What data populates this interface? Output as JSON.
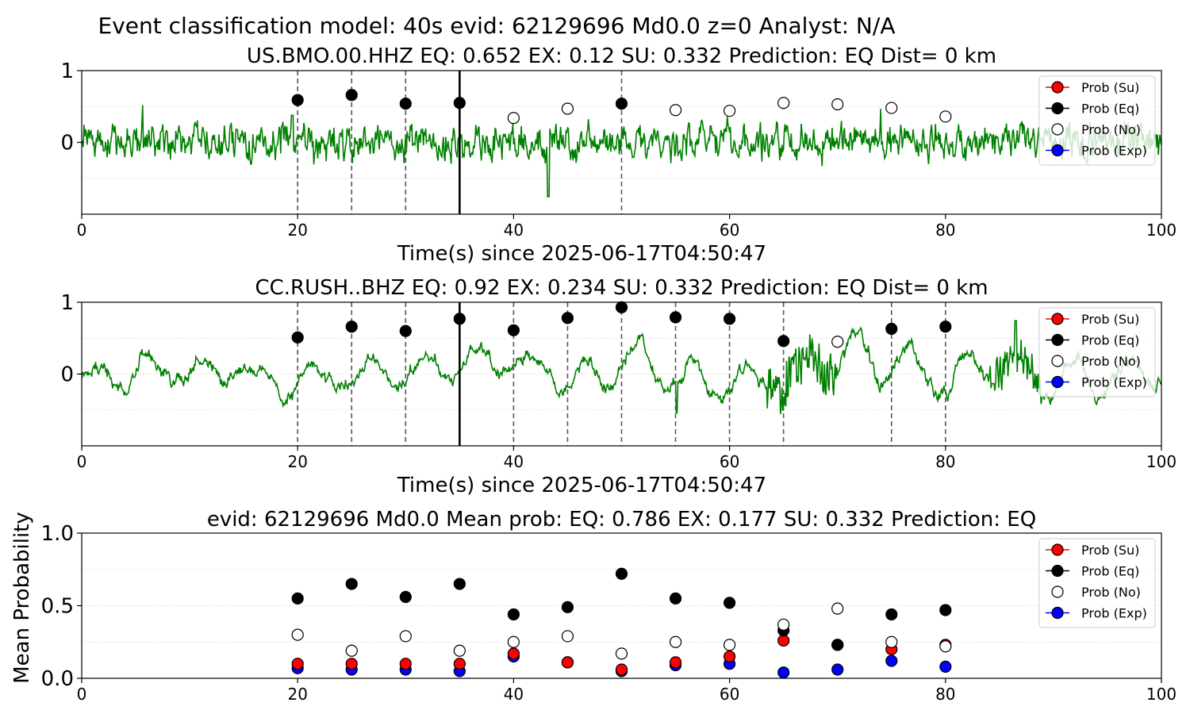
{
  "figure": {
    "suptitle": "Event classification model: 40s evid: 62129696 Md0.0 z=0 Analyst: N/A"
  },
  "chart_data": [
    {
      "type": "line",
      "title": "US.BMO.00.HHZ   EQ: 0.652  EX: 0.12  SU: 0.332   Prediction: EQ    Dist= 0 km",
      "xlabel": "Time(s) since 2025-06-17T04:50:47",
      "ylabel": "",
      "xlim": [
        0,
        100
      ],
      "ylim": [
        -1,
        1
      ],
      "xticks": [
        0,
        20,
        40,
        60,
        80,
        100
      ],
      "yticks": [
        0,
        1
      ],
      "grid": true,
      "legend_position": "upper-right",
      "trace_color": "#008000",
      "dashed_lines": [
        20,
        25,
        30,
        50
      ],
      "solid_line": 35,
      "series": [
        {
          "name": "Prob (Eq)",
          "color": "#000000",
          "x": [
            20,
            25,
            30,
            35,
            50
          ],
          "y": [
            0.59,
            0.66,
            0.54,
            0.55,
            0.54
          ]
        },
        {
          "name": "Prob (No)",
          "color": "#ffffff",
          "x": [
            40,
            45,
            55,
            60,
            65,
            70,
            75,
            80
          ],
          "y": [
            0.34,
            0.47,
            0.45,
            0.44,
            0.55,
            0.53,
            0.48,
            0.36
          ]
        }
      ],
      "legend": [
        {
          "label": "Prob (Su)",
          "color": "#ff0000",
          "line": true
        },
        {
          "label": "Prob (Eq)",
          "color": "#000000",
          "line": true
        },
        {
          "label": "Prob (No)",
          "color": "#ffffff",
          "line": false
        },
        {
          "label": "Prob (Exp)",
          "color": "#0000ff",
          "line": true
        }
      ]
    },
    {
      "type": "line",
      "title": "CC.RUSH..BHZ   EQ: 0.92  EX: 0.234  SU: 0.332   Prediction: EQ    Dist= 0 km",
      "xlabel": "Time(s) since 2025-06-17T04:50:47",
      "ylabel": "",
      "xlim": [
        0,
        100
      ],
      "ylim": [
        -1,
        1
      ],
      "xticks": [
        0,
        20,
        40,
        60,
        80,
        100
      ],
      "yticks": [
        0,
        1
      ],
      "grid": true,
      "legend_position": "upper-right",
      "trace_color": "#008000",
      "dashed_lines": [
        20,
        25,
        30,
        40,
        45,
        50,
        55,
        60,
        65,
        75,
        80
      ],
      "solid_line": 35,
      "series": [
        {
          "name": "Prob (Eq)",
          "color": "#000000",
          "x": [
            20,
            25,
            30,
            35,
            40,
            45,
            50,
            55,
            60,
            65,
            75,
            80
          ],
          "y": [
            0.51,
            0.66,
            0.6,
            0.77,
            0.61,
            0.78,
            0.93,
            0.79,
            0.77,
            0.46,
            0.63,
            0.66
          ]
        },
        {
          "name": "Prob (No)",
          "color": "#ffffff",
          "x": [
            70
          ],
          "y": [
            0.45
          ]
        }
      ],
      "legend": [
        {
          "label": "Prob (Su)",
          "color": "#ff0000",
          "line": true
        },
        {
          "label": "Prob (Eq)",
          "color": "#000000",
          "line": true
        },
        {
          "label": "Prob (No)",
          "color": "#ffffff",
          "line": false
        },
        {
          "label": "Prob (Exp)",
          "color": "#0000ff",
          "line": true
        }
      ]
    },
    {
      "type": "scatter",
      "title": "evid: 62129696  Md0.0   Mean prob:   EQ: 0.786  EX: 0.177  SU: 0.332   Prediction: EQ",
      "xlabel": "",
      "ylabel": "Mean Probability",
      "xlim": [
        0,
        100
      ],
      "ylim": [
        0,
        1
      ],
      "xticks": [
        0,
        20,
        40,
        60,
        80,
        100
      ],
      "yticks": [
        0.0,
        0.5,
        1.0
      ],
      "ytick_labels": [
        "0.0",
        "0.5",
        "1.0"
      ],
      "grid": true,
      "legend_position": "upper-right",
      "x": [
        20,
        25,
        30,
        35,
        40,
        45,
        50,
        55,
        60,
        65,
        70,
        75,
        80
      ],
      "series": [
        {
          "name": "Prob (Exp)",
          "color": "#0000ff",
          "y": [
            0.07,
            0.06,
            0.06,
            0.05,
            0.15,
            0.11,
            0.05,
            0.09,
            0.1,
            0.04,
            0.06,
            0.12,
            0.08
          ]
        },
        {
          "name": "Prob (Su)",
          "color": "#ff0000",
          "y": [
            0.1,
            0.1,
            0.1,
            0.1,
            0.17,
            0.11,
            0.06,
            0.11,
            0.15,
            0.26,
            0.23,
            0.2,
            0.23
          ]
        },
        {
          "name": "Prob (Eq)",
          "color": "#000000",
          "y": [
            0.55,
            0.65,
            0.56,
            0.65,
            0.44,
            0.49,
            0.72,
            0.55,
            0.52,
            0.33,
            0.23,
            0.44,
            0.47
          ]
        },
        {
          "name": "Prob (No)",
          "color": "#ffffff",
          "y": [
            0.3,
            0.19,
            0.29,
            0.19,
            0.25,
            0.29,
            0.17,
            0.25,
            0.23,
            0.37,
            0.48,
            0.25,
            0.22
          ]
        }
      ],
      "legend": [
        {
          "label": "Prob (Su)",
          "color": "#ff0000",
          "line": true
        },
        {
          "label": "Prob (Eq)",
          "color": "#000000",
          "line": true
        },
        {
          "label": "Prob (No)",
          "color": "#ffffff",
          "line": false
        },
        {
          "label": "Prob (Exp)",
          "color": "#0000ff",
          "line": true
        }
      ]
    }
  ]
}
